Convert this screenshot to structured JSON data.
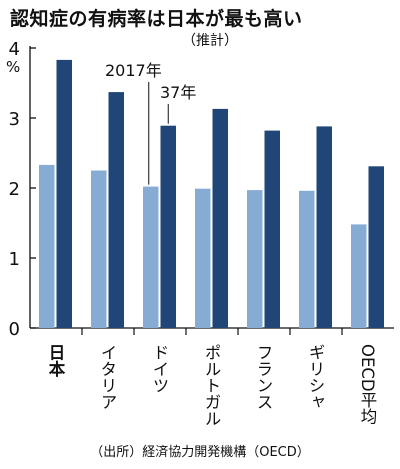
{
  "title": "認知症の有病率は日本が最も高い",
  "subtitle": "（推計）",
  "source": "（出所）経済協力開発機構（OECD）",
  "chart_data": {
    "type": "bar",
    "title": "認知症の有病率は日本が最も高い",
    "subtitle": "（推計）",
    "unit": "%",
    "ylim": [
      0,
      4
    ],
    "yticks": [
      "0",
      "1",
      "2",
      "3",
      "4"
    ],
    "categories": [
      "日本",
      "イタリア",
      "ドイツ",
      "ポルトガル",
      "フランス",
      "ギリシャ",
      "OECD平均"
    ],
    "highlight_category": "日本",
    "annotations": [
      "2017年",
      "37年"
    ],
    "series": [
      {
        "name": "2017年",
        "values": [
          2.33,
          2.25,
          2.02,
          1.99,
          1.97,
          1.96,
          1.48
        ],
        "color": "#86acd4"
      },
      {
        "name": "37年",
        "values": [
          3.83,
          3.37,
          2.89,
          3.13,
          2.82,
          2.88,
          2.31
        ],
        "color": "#1f4677"
      }
    ],
    "grid": false,
    "legend": "none"
  }
}
